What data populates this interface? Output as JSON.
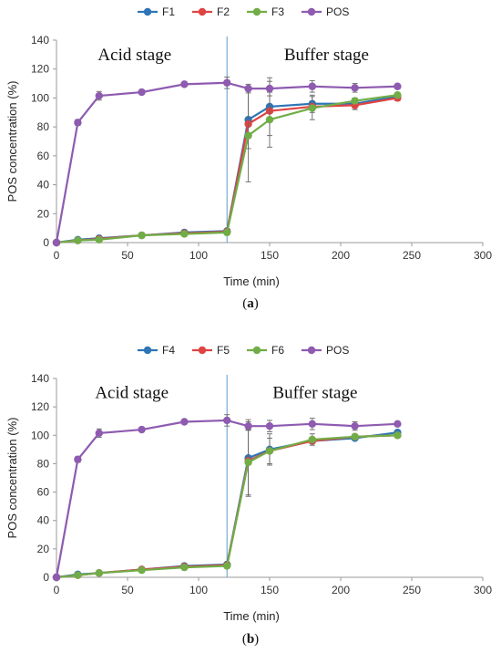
{
  "chart_data": [
    {
      "type": "line",
      "panel_label": "a",
      "xlabel": "Time (min)",
      "ylabel": "POS concentration (%)",
      "xlim": [
        0,
        300
      ],
      "ylim": [
        0,
        140
      ],
      "xticks": [
        0,
        50,
        100,
        150,
        200,
        250,
        300
      ],
      "yticks": [
        0,
        20,
        40,
        60,
        80,
        100,
        120,
        140
      ],
      "grid": false,
      "legend": "top",
      "annotations": [
        {
          "text": "Acid stage",
          "x": 55,
          "y": 130
        },
        {
          "text": "Buffer stage",
          "x": 190,
          "y": 130
        }
      ],
      "stage_divider_x": 120,
      "series": [
        {
          "name": "F1",
          "color": "#2e75b6",
          "x": [
            0,
            15,
            30,
            60,
            90,
            120,
            135,
            150,
            180,
            210,
            240
          ],
          "y": [
            0,
            2,
            3,
            5,
            7,
            8,
            85,
            94,
            96,
            96,
            101
          ],
          "err": [
            0,
            0,
            0,
            0,
            0,
            0,
            20,
            20,
            6,
            4,
            2
          ]
        },
        {
          "name": "F2",
          "color": "#e04343",
          "x": [
            0,
            15,
            30,
            60,
            90,
            120,
            135,
            150,
            180,
            210,
            240
          ],
          "y": [
            0,
            1.5,
            2.5,
            5,
            6.5,
            7.5,
            82,
            91,
            94,
            95,
            100
          ],
          "err": [
            0,
            0,
            0,
            0,
            0,
            0,
            0,
            0,
            0,
            3,
            2
          ]
        },
        {
          "name": "F3",
          "color": "#70ad47",
          "x": [
            0,
            15,
            30,
            60,
            90,
            120,
            135,
            150,
            180,
            210,
            240
          ],
          "y": [
            0,
            1.5,
            2,
            5,
            6,
            7,
            74,
            85,
            93,
            98,
            102
          ],
          "err": [
            0,
            0,
            0,
            0,
            0,
            0,
            32,
            19,
            8,
            0,
            0
          ]
        },
        {
          "name": "POS",
          "color": "#8e5bb0",
          "x": [
            0,
            15,
            30,
            60,
            90,
            120,
            135,
            150,
            180,
            210,
            240
          ],
          "y": [
            0,
            83,
            101.5,
            104,
            109.5,
            110.5,
            106.5,
            106.5,
            108,
            107,
            108
          ],
          "err": [
            0,
            2,
            3,
            0,
            0,
            4,
            3,
            5,
            4,
            3,
            0
          ]
        }
      ]
    },
    {
      "type": "line",
      "panel_label": "b",
      "xlabel": "Time (min)",
      "ylabel": "POS concentration (%)",
      "xlim": [
        0,
        300
      ],
      "ylim": [
        0,
        140
      ],
      "xticks": [
        0,
        50,
        100,
        150,
        200,
        250,
        300
      ],
      "yticks": [
        0,
        20,
        40,
        60,
        80,
        100,
        120,
        140
      ],
      "grid": false,
      "legend": "top",
      "annotations": [
        {
          "text": "Acid stage",
          "x": 53,
          "y": 130
        },
        {
          "text": "Buffer stage",
          "x": 182,
          "y": 130
        }
      ],
      "stage_divider_x": 120,
      "series": [
        {
          "name": "F4",
          "color": "#2e75b6",
          "x": [
            0,
            15,
            30,
            60,
            90,
            120,
            135,
            150,
            180,
            210,
            240
          ],
          "y": [
            0,
            2,
            3,
            5.5,
            8,
            9,
            84,
            90,
            96,
            98,
            102
          ],
          "err": [
            0,
            0,
            0,
            0,
            0,
            0,
            27,
            11,
            0,
            0,
            0
          ]
        },
        {
          "name": "F5",
          "color": "#e04343",
          "x": [
            0,
            15,
            30,
            60,
            90,
            120,
            135,
            150,
            180,
            210,
            240
          ],
          "y": [
            0,
            1.5,
            3,
            5.5,
            7.5,
            8.5,
            82,
            89,
            96,
            99,
            100
          ],
          "err": [
            0,
            0,
            0,
            0,
            0,
            0,
            0,
            0,
            0,
            0,
            0
          ]
        },
        {
          "name": "F6",
          "color": "#70ad47",
          "x": [
            0,
            15,
            30,
            60,
            90,
            120,
            135,
            150,
            180,
            210,
            240
          ],
          "y": [
            0,
            1.5,
            3,
            5,
            7,
            8,
            81,
            89,
            97,
            99,
            100
          ],
          "err": [
            0,
            0,
            0,
            0,
            0,
            0,
            23,
            9,
            4,
            0,
            0
          ]
        },
        {
          "name": "POS",
          "color": "#8e5bb0",
          "x": [
            0,
            15,
            30,
            60,
            90,
            120,
            135,
            150,
            180,
            210,
            240
          ],
          "y": [
            0,
            83,
            101.5,
            104,
            109.5,
            110.5,
            106.5,
            106.5,
            108,
            106.5,
            108
          ],
          "err": [
            0,
            2,
            3,
            0,
            0,
            4,
            3,
            4,
            4,
            3,
            0
          ]
        }
      ]
    }
  ],
  "captions": [
    {
      "open": "(",
      "label": "a",
      "close": ")"
    },
    {
      "open": "(",
      "label": "b",
      "close": ")"
    }
  ]
}
